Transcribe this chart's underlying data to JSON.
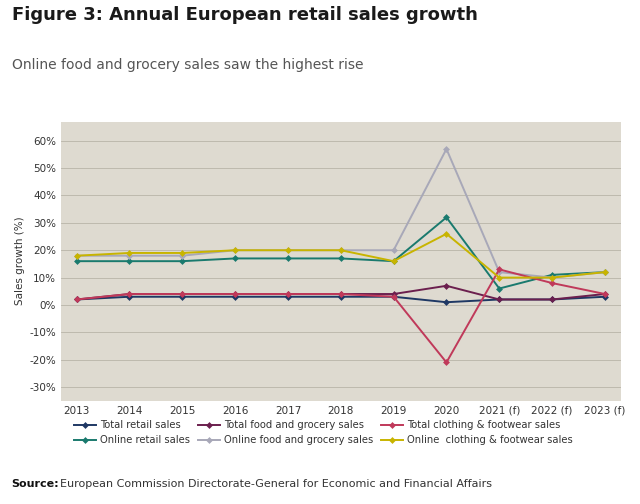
{
  "title": "Figure 3: Annual European retail sales growth",
  "subtitle": "Online food and grocery sales saw the highest rise",
  "source_bold": "Source:",
  "source_rest": "  European Commission Directorate-General for Economic and Financial Affairs",
  "ylabel": "Sales growth (%)",
  "white_bg": "#ffffff",
  "beige_bg": "#dedad0",
  "ylim": [
    -35,
    67
  ],
  "yticks": [
    -30,
    -20,
    -10,
    0,
    10,
    20,
    30,
    40,
    50,
    60
  ],
  "ytick_labels": [
    "-30%",
    "-20%",
    "-10%",
    "0%",
    "10%",
    "20%",
    "30%",
    "40%",
    "50%",
    "60%"
  ],
  "x_labels": [
    "2013",
    "2014",
    "2015",
    "2016",
    "2017",
    "2018",
    "2019",
    "2020",
    "2021 (f)",
    "2022 (f)",
    "2023 (f)"
  ],
  "series": [
    {
      "name": "Total retail sales",
      "color": "#1f3864",
      "values": [
        2,
        3,
        3,
        3,
        3,
        3,
        3,
        1,
        2,
        2,
        3
      ]
    },
    {
      "name": "Online retail sales",
      "color": "#1a7a6e",
      "values": [
        16,
        16,
        16,
        17,
        17,
        17,
        16,
        32,
        6,
        11,
        12
      ]
    },
    {
      "name": "Total food and grocery sales",
      "color": "#6b1f4e",
      "values": [
        2,
        4,
        4,
        4,
        4,
        4,
        4,
        7,
        2,
        2,
        4
      ]
    },
    {
      "name": "Online food and grocery sales",
      "color": "#a8a8b8",
      "values": [
        18,
        18,
        18,
        20,
        20,
        20,
        20,
        57,
        12,
        10,
        12
      ]
    },
    {
      "name": "Total clothing & footwear sales",
      "color": "#c0395a",
      "values": [
        2,
        4,
        4,
        4,
        4,
        4,
        3,
        -21,
        13,
        8,
        4
      ]
    },
    {
      "name": "Online  clothing & footwear sales",
      "color": "#c8b400",
      "values": [
        18,
        19,
        19,
        20,
        20,
        20,
        16,
        26,
        10,
        10,
        12
      ]
    }
  ]
}
